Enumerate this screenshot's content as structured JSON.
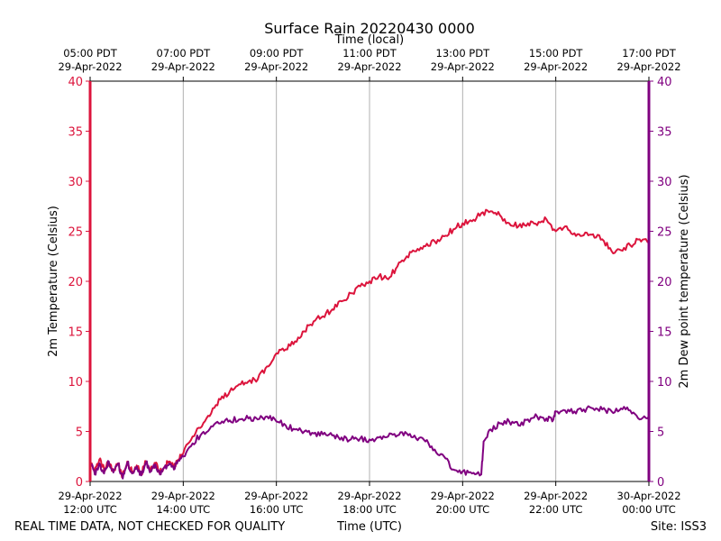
{
  "chart_data": {
    "type": "line",
    "title": "Surface Rain 20220430 0000",
    "top_axis_label": "Time (local)",
    "xlabel": "Time (UTC)",
    "ylabel_left": "2m Temperature (Celsius)",
    "ylabel_right": "2m Dew point temperature (Celsius)",
    "footer_left": "REAL TIME DATA, NOT CHECKED FOR QUALITY",
    "footer_right": "Site: ISS3",
    "x_range_utc_hours": [
      12,
      24
    ],
    "ylim": [
      0,
      40
    ],
    "y_ticks": [
      0,
      5,
      10,
      15,
      20,
      25,
      30,
      35,
      40
    ],
    "grid": "vertical",
    "colors": {
      "temperature": "#dc143c",
      "dewpoint": "#800080",
      "grid": "#b0b0b0"
    },
    "bottom_ticks": [
      {
        "hour": 12,
        "date": "29-Apr-2022",
        "time": "12:00 UTC"
      },
      {
        "hour": 14,
        "date": "29-Apr-2022",
        "time": "14:00 UTC"
      },
      {
        "hour": 16,
        "date": "29-Apr-2022",
        "time": "16:00 UTC"
      },
      {
        "hour": 18,
        "date": "29-Apr-2022",
        "time": "18:00 UTC"
      },
      {
        "hour": 20,
        "date": "29-Apr-2022",
        "time": "20:00 UTC"
      },
      {
        "hour": 22,
        "date": "29-Apr-2022",
        "time": "22:00 UTC"
      },
      {
        "hour": 24,
        "date": "30-Apr-2022",
        "time": "00:00 UTC"
      }
    ],
    "top_ticks": [
      {
        "hour": 12,
        "time": "05:00 PDT",
        "date": "29-Apr-2022"
      },
      {
        "hour": 14,
        "time": "07:00 PDT",
        "date": "29-Apr-2022"
      },
      {
        "hour": 16,
        "time": "09:00 PDT",
        "date": "29-Apr-2022"
      },
      {
        "hour": 18,
        "time": "11:00 PDT",
        "date": "29-Apr-2022"
      },
      {
        "hour": 20,
        "time": "13:00 PDT",
        "date": "29-Apr-2022"
      },
      {
        "hour": 22,
        "time": "15:00 PDT",
        "date": "29-Apr-2022"
      },
      {
        "hour": 24,
        "time": "17:00 PDT",
        "date": "29-Apr-2022"
      }
    ],
    "series": [
      {
        "key": "temperature",
        "axis": "left",
        "x": [
          12.0,
          12.1,
          12.2,
          12.3,
          12.4,
          12.5,
          12.6,
          12.7,
          12.8,
          12.9,
          13.0,
          13.1,
          13.2,
          13.3,
          13.4,
          13.5,
          13.6,
          13.7,
          13.8,
          13.9,
          14.0,
          14.2,
          14.4,
          14.6,
          14.8,
          15.0,
          15.2,
          15.4,
          15.6,
          15.8,
          16.0,
          16.2,
          16.4,
          16.6,
          16.8,
          17.0,
          17.2,
          17.4,
          17.6,
          17.8,
          18.0,
          18.2,
          18.4,
          18.6,
          18.8,
          19.0,
          19.2,
          19.4,
          19.6,
          19.8,
          20.0,
          20.2,
          20.4,
          20.6,
          20.8,
          21.0,
          21.2,
          21.4,
          21.6,
          21.8,
          22.0,
          22.2,
          22.4,
          22.6,
          22.8,
          23.0,
          23.2,
          23.4,
          23.6,
          23.8,
          24.0
        ],
        "values": [
          2.0,
          1.0,
          2.2,
          1.2,
          1.9,
          1.0,
          1.8,
          0.5,
          2.0,
          1.0,
          1.6,
          0.8,
          2.0,
          1.2,
          1.8,
          0.9,
          1.5,
          2.0,
          1.4,
          2.2,
          2.8,
          4.5,
          5.5,
          6.8,
          8.2,
          9.0,
          9.7,
          10.0,
          10.2,
          11.5,
          12.8,
          13.2,
          14.0,
          15.0,
          16.0,
          16.5,
          17.2,
          18.0,
          18.8,
          19.5,
          20.0,
          20.5,
          20.2,
          21.5,
          22.5,
          23.0,
          23.5,
          24.0,
          24.5,
          25.2,
          25.8,
          26.0,
          26.8,
          27.0,
          26.6,
          25.8,
          25.5,
          25.8,
          25.6,
          26.2,
          25.0,
          25.5,
          24.8,
          24.6,
          24.7,
          24.2,
          23.0,
          23.1,
          23.6,
          24.2,
          23.8
        ]
      },
      {
        "key": "dewpoint",
        "axis": "right",
        "x": [
          12.0,
          12.1,
          12.2,
          12.3,
          12.4,
          12.5,
          12.6,
          12.7,
          12.8,
          12.9,
          13.0,
          13.1,
          13.2,
          13.3,
          13.4,
          13.5,
          13.6,
          13.7,
          13.8,
          13.9,
          14.0,
          14.2,
          14.4,
          14.6,
          14.8,
          15.0,
          15.2,
          15.4,
          15.6,
          15.8,
          16.0,
          16.2,
          16.4,
          16.6,
          16.8,
          17.0,
          17.2,
          17.4,
          17.6,
          17.8,
          18.0,
          18.2,
          18.4,
          18.6,
          18.8,
          19.0,
          19.2,
          19.4,
          19.6,
          19.8,
          20.0,
          20.2,
          20.4,
          20.45,
          20.6,
          20.8,
          21.0,
          21.2,
          21.4,
          21.6,
          21.8,
          21.95,
          22.0,
          22.2,
          22.4,
          22.6,
          22.8,
          23.0,
          23.2,
          23.4,
          23.6,
          23.8,
          24.0
        ],
        "values": [
          2.0,
          0.7,
          1.8,
          0.8,
          2.0,
          0.9,
          1.8,
          0.3,
          1.9,
          0.8,
          1.5,
          0.6,
          1.9,
          1.0,
          1.7,
          0.7,
          1.4,
          1.8,
          1.2,
          2.1,
          2.5,
          3.8,
          4.8,
          5.5,
          5.8,
          6.1,
          6.2,
          6.3,
          6.2,
          6.5,
          6.0,
          5.6,
          5.2,
          5.0,
          4.8,
          4.7,
          4.6,
          4.4,
          4.2,
          4.3,
          4.2,
          4.4,
          4.5,
          4.6,
          4.8,
          4.3,
          4.0,
          3.2,
          2.5,
          1.2,
          1.0,
          0.8,
          0.7,
          4.0,
          5.2,
          5.8,
          6.0,
          5.6,
          6.2,
          6.5,
          6.3,
          6.2,
          7.0,
          7.1,
          7.0,
          7.2,
          7.3,
          7.2,
          7.0,
          7.3,
          7.1,
          6.2,
          6.5
        ]
      }
    ]
  }
}
